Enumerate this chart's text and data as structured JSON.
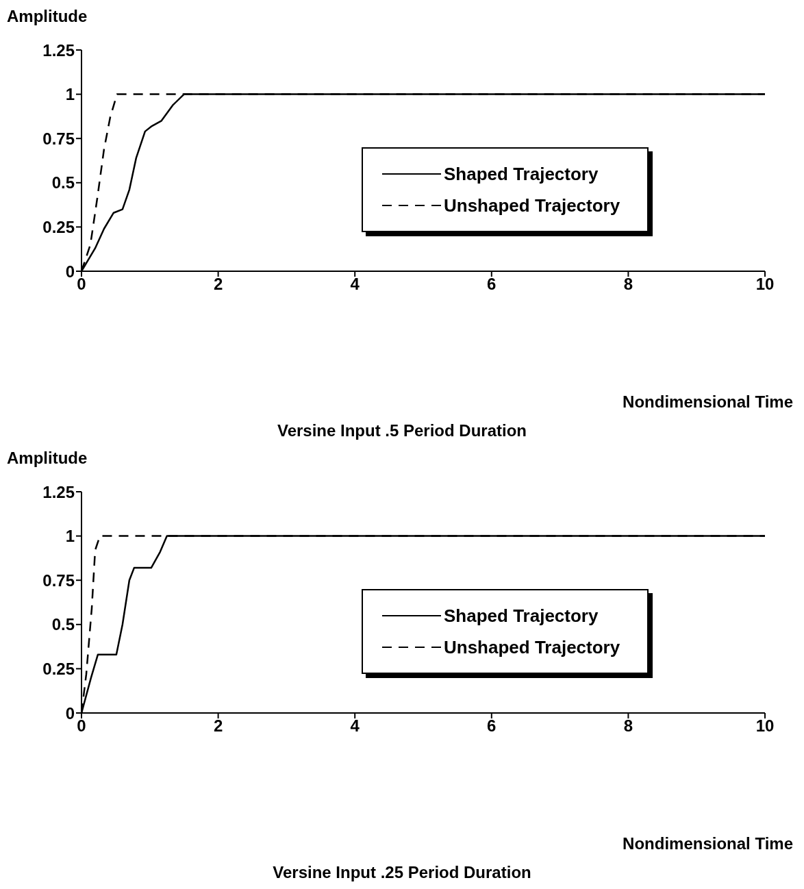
{
  "chart_data": [
    {
      "type": "line",
      "title": "Versine Input .5 Period Duration",
      "xlabel": "Nondimensional Time",
      "ylabel": "Amplitude",
      "xlim": [
        0,
        10
      ],
      "xticks": [
        0,
        2,
        4,
        6,
        8,
        10
      ],
      "ylim": [
        0,
        1.25
      ],
      "yticks": [
        0,
        0.25,
        0.5,
        0.75,
        1,
        1.25
      ],
      "legend": "right",
      "series": [
        {
          "name": "Shaped Trajectory",
          "color": "#000000",
          "line_style": "solid",
          "x": [
            0,
            0.2,
            0.33,
            0.47,
            0.6,
            0.7,
            0.8,
            0.93,
            1.03,
            1.17,
            1.34,
            1.5,
            10
          ],
          "values": [
            0,
            0.13,
            0.24,
            0.33,
            0.35,
            0.46,
            0.64,
            0.79,
            0.82,
            0.85,
            0.94,
            1,
            1
          ]
        },
        {
          "name": "Unshaped Trajectory",
          "color": "#000000",
          "line_style": "dashed",
          "x": [
            0,
            0.13,
            0.23,
            0.33,
            0.42,
            0.52,
            10
          ],
          "values": [
            0,
            0.15,
            0.41,
            0.69,
            0.87,
            1,
            1
          ]
        }
      ]
    },
    {
      "type": "line",
      "title": "Versine Input .25 Period Duration",
      "xlabel": "Nondimensional Time",
      "ylabel": "Amplitude",
      "xlim": [
        0,
        10
      ],
      "xticks": [
        0,
        2,
        4,
        6,
        8,
        10
      ],
      "ylim": [
        0,
        1.25
      ],
      "yticks": [
        0,
        0.25,
        0.5,
        0.75,
        1,
        1.25
      ],
      "legend": "right",
      "series": [
        {
          "name": "Shaped Trajectory",
          "color": "#000000",
          "line_style": "solid",
          "x": [
            0,
            0.14,
            0.24,
            0.51,
            0.6,
            0.7,
            0.77,
            1.02,
            1.15,
            1.25,
            10
          ],
          "values": [
            0,
            0.2,
            0.33,
            0.33,
            0.5,
            0.75,
            0.82,
            0.82,
            0.91,
            1,
            1
          ]
        },
        {
          "name": "Unshaped Trajectory",
          "color": "#000000",
          "line_style": "dashed",
          "x": [
            0,
            0.07,
            0.15,
            0.2,
            0.27,
            10
          ],
          "values": [
            0,
            0.22,
            0.59,
            0.92,
            1,
            1
          ]
        }
      ]
    }
  ]
}
